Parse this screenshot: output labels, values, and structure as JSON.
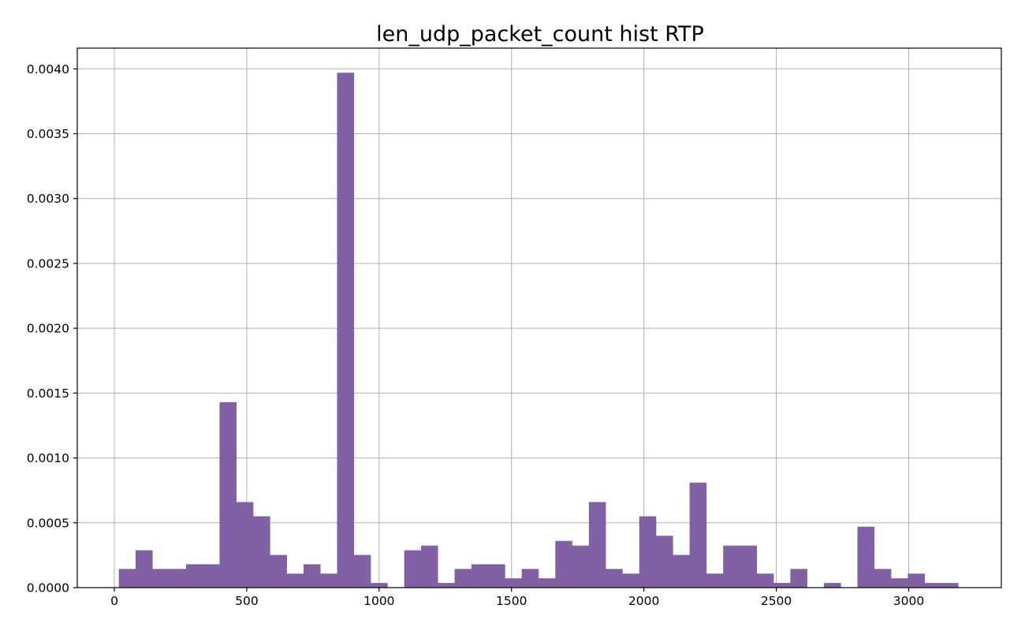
{
  "chart_data": {
    "type": "bar",
    "title": "len_udp_packet_count hist RTP",
    "xlabel": "",
    "ylabel": "",
    "xlim": [
      -140,
      3350
    ],
    "ylim": [
      0,
      0.00416
    ],
    "grid": true,
    "bar_color": "#8160a6",
    "bin_width": 63.4,
    "bin_start": 17,
    "x_ticks": [
      0,
      500,
      1000,
      1500,
      2000,
      2500,
      3000
    ],
    "x_tick_labels": [
      "0",
      "500",
      "1000",
      "1500",
      "2000",
      "2500",
      "3000"
    ],
    "y_ticks": [
      0,
      0.0005,
      0.001,
      0.0015,
      0.002,
      0.0025,
      0.003,
      0.0035,
      0.004
    ],
    "y_tick_labels": [
      "0.0000",
      "0.0005",
      "0.0010",
      "0.0015",
      "0.0020",
      "0.0025",
      "0.0030",
      "0.0035",
      "0.0040"
    ],
    "values": [
      0.000144,
      0.000288,
      0.000144,
      0.000144,
      0.00018,
      0.00018,
      0.00143,
      0.00066,
      0.00055,
      0.000252,
      0.000108,
      0.00018,
      0.000108,
      0.00397,
      0.000252,
      3.6e-05,
      0.0,
      0.000288,
      0.000324,
      3.6e-05,
      0.000144,
      0.00018,
      0.00018,
      7.2e-05,
      0.000144,
      7.2e-05,
      0.00036,
      0.000324,
      0.00066,
      0.000144,
      0.000108,
      0.00055,
      0.0004,
      0.000252,
      0.00081,
      0.000108,
      0.000324,
      0.000324,
      0.000108,
      3.6e-05,
      0.000144,
      0.0,
      3.6e-05,
      0.0,
      0.00047,
      0.000144,
      7.2e-05,
      0.000108,
      3.6e-05,
      3.6e-05
    ]
  }
}
